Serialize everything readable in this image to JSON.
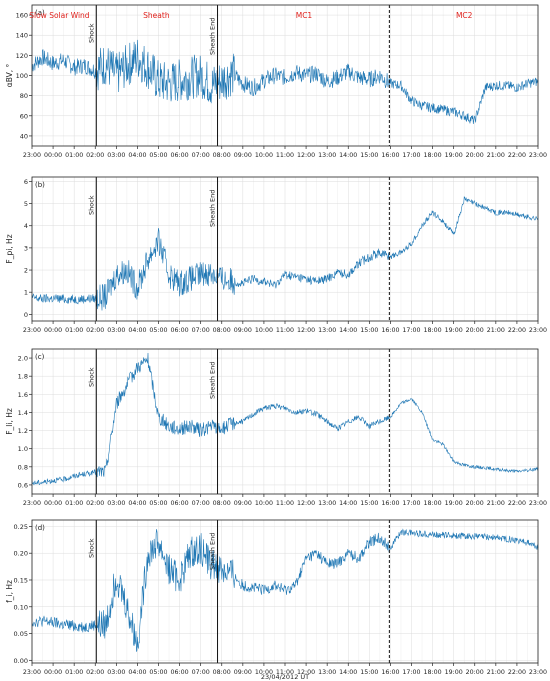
{
  "figure": {
    "xlabel": "23/04/2012 UT",
    "line_color": "#1f77b4",
    "region_label_color": "#e0201b",
    "grid": true
  },
  "chart_data": [
    {
      "type": "line",
      "panel": "(a)",
      "ylabel": "αBV, °",
      "ylim": [
        30,
        170
      ],
      "yticks": [
        40,
        60,
        80,
        100,
        120,
        140,
        160
      ],
      "ytick_labels": [
        "40",
        "60",
        "80",
        "100",
        "120",
        "140",
        "160"
      ],
      "regions": [
        "Slow Solar Wind",
        "Sheath",
        "MC1",
        "MC2"
      ],
      "events": [
        "Shock",
        "Sheath End"
      ],
      "series": [
        {
          "x": [
            0,
            0.5,
            1,
            1.5,
            2,
            2.5,
            3,
            3.5,
            4,
            4.5,
            5,
            5.5,
            6,
            6.5,
            7,
            7.5,
            8,
            8.5,
            9,
            9.5,
            10,
            10.5,
            11,
            11.5,
            12,
            12.5,
            13,
            13.5,
            14,
            14.5,
            15,
            15.5,
            16,
            16.5,
            17,
            17.5,
            18,
            18.5,
            19,
            19.5,
            20,
            20.5,
            21,
            21.5,
            22,
            22.5,
            23,
            23.5,
            24
          ],
          "values": [
            110,
            118,
            112,
            115,
            108,
            110,
            105,
            112,
            100,
            110,
            118,
            108,
            94,
            92,
            95,
            98,
            100,
            90,
            95,
            102,
            92,
            88,
            95,
            100,
            98,
            103,
            100,
            102,
            94,
            98,
            104,
            98,
            96,
            100,
            92,
            90,
            75,
            70,
            68,
            66,
            64,
            60,
            55,
            88,
            90,
            90,
            88,
            92,
            94
          ]
        }
      ]
    },
    {
      "type": "line",
      "panel": "(b)",
      "ylabel": "F_pi, Hz",
      "ylim": [
        -0.3,
        6.2
      ],
      "yticks": [
        0,
        1,
        2,
        3,
        4,
        5,
        6
      ],
      "ytick_labels": [
        "0",
        "1",
        "2",
        "3",
        "4",
        "5",
        "6"
      ],
      "events": [
        "Shock",
        "Sheath End"
      ],
      "series": [
        {
          "x": [
            0,
            0.5,
            1,
            1.5,
            2,
            2.5,
            3,
            3.5,
            4,
            4.5,
            5,
            5.5,
            6,
            6.5,
            7,
            7.5,
            8,
            8.5,
            9,
            9.5,
            10,
            10.5,
            11,
            11.5,
            12,
            12.5,
            13,
            13.5,
            14,
            14.5,
            15,
            15.5,
            16,
            16.5,
            17,
            17.5,
            18,
            18.5,
            19,
            19.5,
            20,
            20.5,
            21,
            21.5,
            22,
            22.5,
            23,
            23.5,
            24
          ],
          "values": [
            0.75,
            0.7,
            0.72,
            0.7,
            0.68,
            0.7,
            0.72,
            0.8,
            1.8,
            2.0,
            1.2,
            2.5,
            3.3,
            1.8,
            1.4,
            1.6,
            1.8,
            1.9,
            1.6,
            1.5,
            1.4,
            1.6,
            1.5,
            1.3,
            1.8,
            1.7,
            1.6,
            1.5,
            1.6,
            1.9,
            1.8,
            2.3,
            2.6,
            2.8,
            2.6,
            2.8,
            3.2,
            4.0,
            4.6,
            4.2,
            3.6,
            5.2,
            5.0,
            4.8,
            4.6,
            4.6,
            4.5,
            4.4,
            4.3
          ]
        }
      ]
    },
    {
      "type": "line",
      "panel": "(c)",
      "ylabel": "F_li, Hz",
      "ylim": [
        0.5,
        2.1
      ],
      "yticks": [
        0.6,
        0.8,
        1.0,
        1.2,
        1.4,
        1.6,
        1.8,
        2.0
      ],
      "ytick_labels": [
        "0.6",
        "0.8",
        "1.0",
        "1.2",
        "1.4",
        "1.6",
        "1.8",
        "2.0"
      ],
      "events": [
        "Shock",
        "Sheath End"
      ],
      "series": [
        {
          "x": [
            0,
            0.5,
            1,
            1.5,
            2,
            2.5,
            3,
            3.5,
            4,
            4.5,
            5,
            5.5,
            6,
            6.5,
            7,
            7.5,
            8,
            8.5,
            9,
            9.5,
            10,
            10.5,
            11,
            11.5,
            12,
            12.5,
            13,
            13.5,
            14,
            14.5,
            15,
            15.5,
            16,
            16.5,
            17,
            17.5,
            18,
            18.5,
            19,
            19.5,
            20,
            20.5,
            21,
            21.5,
            22,
            22.5,
            23,
            23.5,
            24
          ],
          "values": [
            0.62,
            0.63,
            0.65,
            0.66,
            0.7,
            0.72,
            0.74,
            0.75,
            1.5,
            1.7,
            1.9,
            1.98,
            1.35,
            1.25,
            1.22,
            1.25,
            1.2,
            1.25,
            1.22,
            1.28,
            1.3,
            1.38,
            1.45,
            1.47,
            1.45,
            1.4,
            1.42,
            1.38,
            1.3,
            1.22,
            1.3,
            1.35,
            1.25,
            1.3,
            1.35,
            1.5,
            1.55,
            1.4,
            1.1,
            1.05,
            0.86,
            0.82,
            0.8,
            0.79,
            0.77,
            0.76,
            0.75,
            0.76,
            0.78
          ]
        }
      ]
    },
    {
      "type": "line",
      "panel": "(d)",
      "ylabel": "f_i, Hz",
      "ylim": [
        -0.005,
        0.262
      ],
      "yticks": [
        0.0,
        0.05,
        0.1,
        0.15,
        0.2,
        0.25
      ],
      "ytick_labels": [
        "0.00",
        "0.05",
        "0.10",
        "0.15",
        "0.20",
        "0.25"
      ],
      "xticks": [
        0,
        1,
        2,
        3,
        4,
        5,
        6,
        7,
        8,
        9,
        10,
        11,
        12,
        13,
        14,
        15,
        16,
        17,
        18,
        19,
        20,
        21,
        22,
        23,
        24
      ],
      "xtick_labels": [
        "23:00",
        "00:00",
        "01:00",
        "02:00",
        "03:00",
        "04:00",
        "05:00",
        "06:00",
        "07:00",
        "08:00",
        "09:00",
        "10:00",
        "11:00",
        "12:00",
        "13:00",
        "14:00",
        "15:00",
        "16:00",
        "17:00",
        "18:00",
        "19:00",
        "20:00",
        "21:00",
        "22:00",
        "23:00"
      ],
      "events": [
        "Shock",
        "Sheath End"
      ],
      "series": [
        {
          "x": [
            0,
            0.5,
            1,
            1.5,
            2,
            2.5,
            3,
            3.5,
            4,
            4.5,
            5,
            5.5,
            6,
            6.5,
            7,
            7.5,
            8,
            8.5,
            9,
            9.5,
            10,
            10.5,
            11,
            11.5,
            12,
            12.5,
            13,
            13.5,
            14,
            14.5,
            15,
            15.5,
            16,
            16.5,
            17,
            17.5,
            18,
            18.5,
            19,
            19.5,
            20,
            20.5,
            21,
            21.5,
            22,
            22.5,
            23,
            23.5,
            24
          ],
          "values": [
            0.072,
            0.073,
            0.07,
            0.066,
            0.065,
            0.062,
            0.066,
            0.064,
            0.16,
            0.1,
            0.03,
            0.2,
            0.22,
            0.17,
            0.15,
            0.2,
            0.21,
            0.18,
            0.17,
            0.16,
            0.14,
            0.135,
            0.13,
            0.14,
            0.13,
            0.14,
            0.19,
            0.2,
            0.18,
            0.18,
            0.2,
            0.19,
            0.22,
            0.23,
            0.21,
            0.24,
            0.238,
            0.236,
            0.235,
            0.234,
            0.233,
            0.232,
            0.231,
            0.23,
            0.229,
            0.227,
            0.225,
            0.22,
            0.21
          ]
        }
      ]
    }
  ]
}
